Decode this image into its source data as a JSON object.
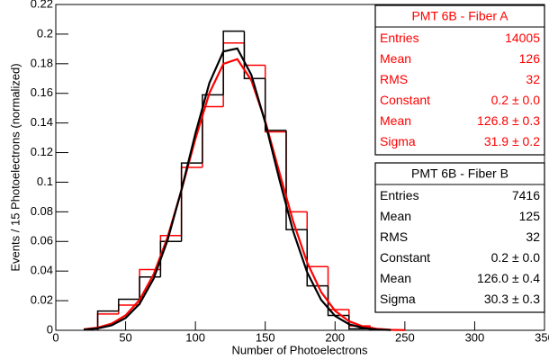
{
  "chart_data": {
    "type": "histogram",
    "xlabel": "Number of Photoelectrons",
    "ylabel": "Events / 15 Photoelectrons (normalized)",
    "xlim": [
      0,
      350
    ],
    "xticks": [
      0,
      50,
      100,
      150,
      200,
      250,
      300,
      350
    ],
    "ylim": [
      0,
      0.22
    ],
    "yticks": [
      0,
      0.02,
      0.04,
      0.06,
      0.08,
      0.1,
      0.12,
      0.14,
      0.16,
      0.18,
      0.2,
      0.22
    ],
    "bins": [
      30,
      45,
      60,
      75,
      90,
      105,
      120,
      135,
      150,
      165,
      180,
      195,
      210,
      225
    ],
    "series": [
      {
        "name": "PMT 6B - Fiber A",
        "color": "#ff0000",
        "values": [
          0.011,
          0.017,
          0.041,
          0.064,
          0.11,
          0.151,
          0.194,
          0.179,
          0.134,
          0.08,
          0.043,
          0.014,
          0.003
        ],
        "fit": {
          "x": [
            20,
            30,
            40,
            50,
            60,
            70,
            80,
            90,
            100,
            110,
            120,
            130,
            140,
            150,
            160,
            170,
            180,
            190,
            200,
            210,
            220,
            230,
            240,
            250
          ],
          "values": [
            0.0007,
            0.0018,
            0.0045,
            0.0101,
            0.0205,
            0.0377,
            0.0627,
            0.0946,
            0.1293,
            0.1602,
            0.1799,
            0.1831,
            0.1689,
            0.1412,
            0.1071,
            0.0735,
            0.0458,
            0.0259,
            0.0132,
            0.0061,
            0.0026,
            0.001,
            0.0003,
            0.0001
          ]
        },
        "stats": [
          [
            "Entries",
            14005
          ],
          [
            "Mean",
            126
          ],
          [
            "RMS",
            32
          ],
          [
            "Constant",
            "0.2 ± 0.0"
          ],
          [
            "Mean",
            "126.8 ± 0.3"
          ],
          [
            "Sigma",
            "31.9 ± 0.2"
          ]
        ]
      },
      {
        "name": "PMT 6B - Fiber B",
        "color": "#000000",
        "values": [
          0.013,
          0.021,
          0.036,
          0.06,
          0.113,
          0.159,
          0.202,
          0.17,
          0.135,
          0.068,
          0.03,
          0.01,
          0.001
        ],
        "fit": {
          "x": [
            20,
            30,
            40,
            50,
            60,
            70,
            80,
            90,
            100,
            110,
            120,
            130,
            140,
            150,
            160,
            170,
            180,
            190,
            200,
            210,
            220,
            230,
            240
          ],
          "values": [
            0.0004,
            0.0013,
            0.0034,
            0.0083,
            0.0179,
            0.0348,
            0.0607,
            0.0948,
            0.1329,
            0.167,
            0.1883,
            0.1903,
            0.1726,
            0.1403,
            0.1023,
            0.0669,
            0.0392,
            0.0206,
            0.0097,
            0.0041,
            0.0016,
            0.0005,
            0.0002
          ]
        },
        "stats": [
          [
            "Entries",
            7416
          ],
          [
            "Mean",
            125
          ],
          [
            "RMS",
            32
          ],
          [
            "Constant",
            "0.2 ± 0.0"
          ],
          [
            "Mean",
            "126.0 ± 0.4"
          ],
          [
            "Sigma",
            "30.3 ± 0.3"
          ]
        ]
      }
    ]
  }
}
